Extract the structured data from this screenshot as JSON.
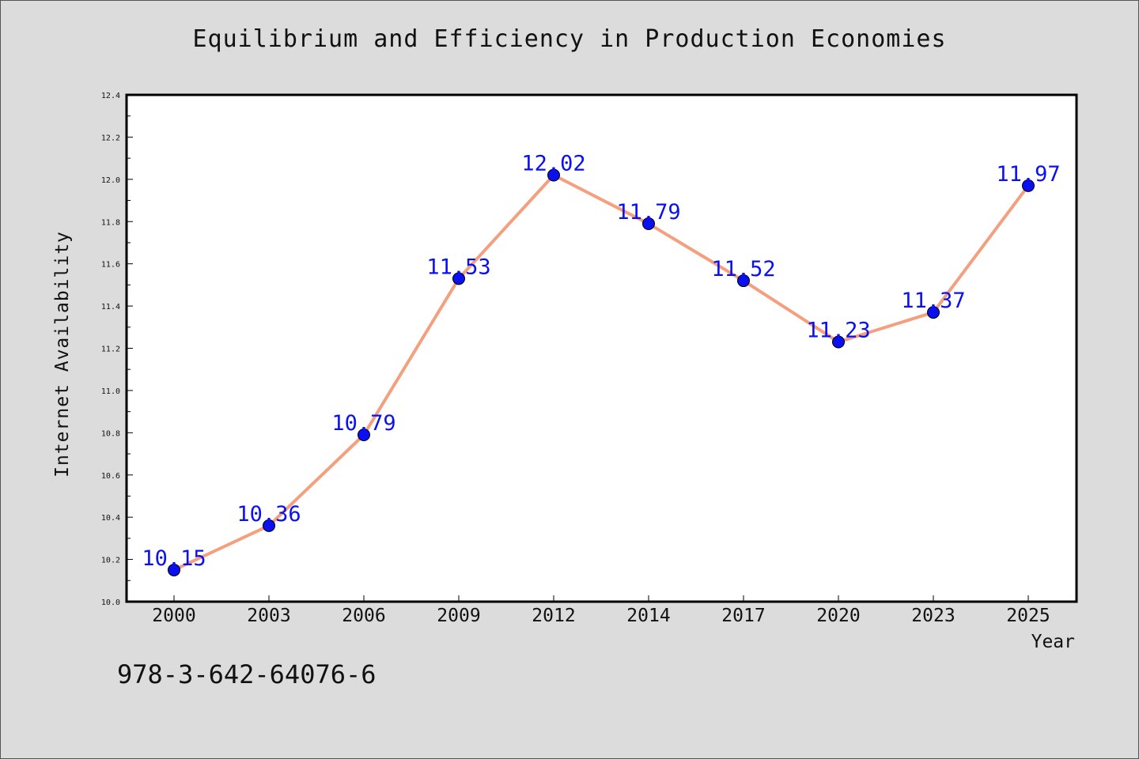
{
  "chart_data": {
    "type": "line",
    "title": "Equilibrium and Efficiency in Production Economies",
    "xlabel": "Year",
    "ylabel": "Internet Availability",
    "categories": [
      "2000",
      "2003",
      "2006",
      "2009",
      "2012",
      "2014",
      "2017",
      "2020",
      "2023",
      "2025"
    ],
    "series": [
      {
        "values": [
          10.15,
          10.36,
          10.79,
          11.53,
          12.02,
          11.79,
          11.52,
          11.23,
          11.37,
          11.97
        ],
        "line_color": "#f4a07f",
        "marker_color": "#0a10f0"
      }
    ],
    "data_labels": [
      "10.15",
      "10.36",
      "10.79",
      "11.53",
      "12.02",
      "11.79",
      "11.52",
      "11.23",
      "11.37",
      "11.97"
    ],
    "ylim": [
      10.0,
      12.4
    ],
    "yticks": [
      "10.0",
      "10.2",
      "10.4",
      "10.6",
      "10.8",
      "11.0",
      "11.2",
      "11.4",
      "11.6",
      "11.8",
      "12.0",
      "12.2",
      "12.4"
    ],
    "grid": false,
    "legend": "none"
  },
  "footer": {
    "isbn": "978-3-642-64076-6"
  },
  "colors": {
    "background": "#dcdcdc",
    "plot_background": "#ffffff",
    "label_color": "#0a10f0"
  }
}
